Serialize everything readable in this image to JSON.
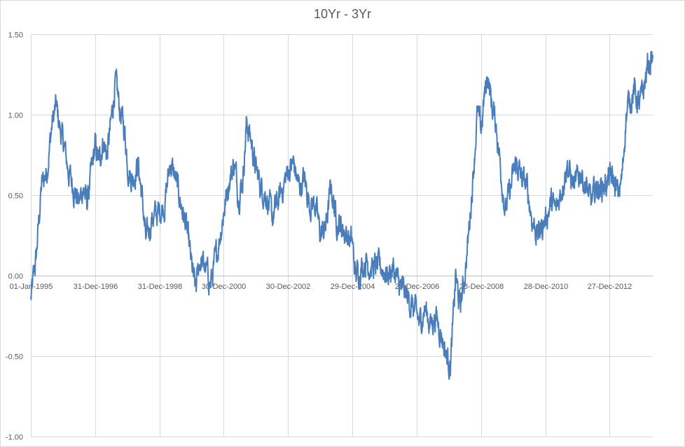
{
  "chart_data": {
    "type": "line",
    "title": "10Yr - 3Yr",
    "xlabel": "",
    "ylabel": "",
    "ylim": [
      -1.0,
      1.5
    ],
    "y_ticks": [
      "1.50",
      "1.00",
      "0.50",
      "0.00",
      "-0.50",
      "-1.00"
    ],
    "y_tick_values": [
      1.5,
      1.0,
      0.5,
      0.0,
      -0.5,
      -1.0
    ],
    "x_range": [
      "1995-01-01",
      "2014-04-30"
    ],
    "x_ticks": [
      "01-Jan-1995",
      "31-Dec-1996",
      "31-Dec-1998",
      "30-Dec-2000",
      "30-Dec-2002",
      "29-Dec-2004",
      "29-Dec-2006",
      "28-Dec-2008",
      "28-Dec-2010",
      "27-Dec-2012"
    ],
    "x_tick_dates": [
      "1995-01-01",
      "1996-12-31",
      "1998-12-31",
      "2000-12-30",
      "2002-12-30",
      "2004-12-29",
      "2006-12-29",
      "2008-12-28",
      "2010-12-28",
      "2012-12-27"
    ],
    "grid": {
      "horizontal": true,
      "vertical": true
    },
    "legend": "none",
    "line_color": "#4a7ebb",
    "series": [
      {
        "values": [
          [
            "1995-01-01",
            -0.15
          ],
          [
            "1995-03-01",
            0.1
          ],
          [
            "1995-05-01",
            0.55
          ],
          [
            "1995-07-01",
            0.65
          ],
          [
            "1995-09-01",
            0.95
          ],
          [
            "1995-10-15",
            1.05
          ],
          [
            "1995-12-01",
            0.9
          ],
          [
            "1996-01-15",
            0.8
          ],
          [
            "1996-03-01",
            0.65
          ],
          [
            "1996-05-01",
            0.55
          ],
          [
            "1996-07-01",
            0.45
          ],
          [
            "1996-08-15",
            0.55
          ],
          [
            "1996-10-01",
            0.45
          ],
          [
            "1996-12-31",
            0.8
          ],
          [
            "1997-02-15",
            0.7
          ],
          [
            "1997-04-01",
            0.85
          ],
          [
            "1997-05-15",
            0.75
          ],
          [
            "1997-07-01",
            0.95
          ],
          [
            "1997-08-15",
            1.2
          ],
          [
            "1997-10-01",
            1.05
          ],
          [
            "1997-12-01",
            0.9
          ],
          [
            "1998-01-15",
            0.65
          ],
          [
            "1998-03-01",
            0.6
          ],
          [
            "1998-05-01",
            0.7
          ],
          [
            "1998-06-15",
            0.5
          ],
          [
            "1998-08-01",
            0.2
          ],
          [
            "1998-10-01",
            0.35
          ],
          [
            "1998-12-31",
            0.4
          ],
          [
            "1999-03-01",
            0.45
          ],
          [
            "1999-05-01",
            0.7
          ],
          [
            "1999-07-01",
            0.6
          ],
          [
            "1999-09-01",
            0.45
          ],
          [
            "1999-11-01",
            0.3
          ],
          [
            "2000-01-01",
            0.05
          ],
          [
            "2000-02-15",
            -0.1
          ],
          [
            "2000-04-01",
            0.1
          ],
          [
            "2000-06-01",
            0.05
          ],
          [
            "2000-08-01",
            -0.05
          ],
          [
            "2000-10-01",
            0.1
          ],
          [
            "2000-12-30",
            0.4
          ],
          [
            "2001-03-01",
            0.6
          ],
          [
            "2001-05-01",
            0.7
          ],
          [
            "2001-06-15",
            0.5
          ],
          [
            "2001-08-01",
            0.6
          ],
          [
            "2001-09-15",
            0.95
          ],
          [
            "2001-11-01",
            0.85
          ],
          [
            "2002-01-01",
            0.65
          ],
          [
            "2002-03-01",
            0.55
          ],
          [
            "2002-05-01",
            0.5
          ],
          [
            "2002-07-01",
            0.35
          ],
          [
            "2002-09-01",
            0.45
          ],
          [
            "2002-12-30",
            0.65
          ],
          [
            "2003-03-01",
            0.7
          ],
          [
            "2003-05-01",
            0.55
          ],
          [
            "2003-07-01",
            0.6
          ],
          [
            "2003-09-01",
            0.45
          ],
          [
            "2003-11-01",
            0.45
          ],
          [
            "2004-01-01",
            0.25
          ],
          [
            "2004-03-01",
            0.3
          ],
          [
            "2004-05-01",
            0.55
          ],
          [
            "2004-07-01",
            0.35
          ],
          [
            "2004-09-01",
            0.3
          ],
          [
            "2004-12-29",
            0.2
          ],
          [
            "2005-02-01",
            0.0
          ],
          [
            "2005-04-01",
            0.05
          ],
          [
            "2005-06-01",
            0.1
          ],
          [
            "2005-08-01",
            0.05
          ],
          [
            "2005-10-01",
            0.05
          ],
          [
            "2005-12-01",
            0.05
          ],
          [
            "2006-02-01",
            0.0
          ],
          [
            "2006-04-01",
            0.05
          ],
          [
            "2006-06-01",
            -0.05
          ],
          [
            "2006-08-01",
            -0.1
          ],
          [
            "2006-10-01",
            -0.15
          ],
          [
            "2006-12-29",
            -0.25
          ],
          [
            "2007-02-01",
            -0.3
          ],
          [
            "2007-04-01",
            -0.2
          ],
          [
            "2007-06-01",
            -0.3
          ],
          [
            "2007-08-01",
            -0.25
          ],
          [
            "2007-10-01",
            -0.35
          ],
          [
            "2007-12-01",
            -0.5
          ],
          [
            "2008-01-15",
            -0.55
          ],
          [
            "2008-02-15",
            -0.3
          ],
          [
            "2008-03-15",
            0.0
          ],
          [
            "2008-05-01",
            -0.2
          ],
          [
            "2008-06-15",
            -0.05
          ],
          [
            "2008-08-01",
            0.2
          ],
          [
            "2008-10-01",
            0.65
          ],
          [
            "2008-11-15",
            1.0
          ],
          [
            "2008-12-28",
            0.9
          ],
          [
            "2009-02-01",
            1.1
          ],
          [
            "2009-03-15",
            1.25
          ],
          [
            "2009-05-01",
            1.05
          ],
          [
            "2009-06-15",
            0.95
          ],
          [
            "2009-08-01",
            0.7
          ],
          [
            "2009-10-01",
            0.4
          ],
          [
            "2009-12-01",
            0.55
          ],
          [
            "2010-02-01",
            0.7
          ],
          [
            "2010-04-01",
            0.6
          ],
          [
            "2010-06-01",
            0.55
          ],
          [
            "2010-08-01",
            0.35
          ],
          [
            "2010-10-01",
            0.25
          ],
          [
            "2010-12-28",
            0.35
          ],
          [
            "2011-03-01",
            0.45
          ],
          [
            "2011-05-01",
            0.4
          ],
          [
            "2011-07-01",
            0.55
          ],
          [
            "2011-09-01",
            0.7
          ],
          [
            "2011-10-15",
            0.6
          ],
          [
            "2011-12-01",
            0.55
          ],
          [
            "2012-02-01",
            0.65
          ],
          [
            "2012-04-01",
            0.55
          ],
          [
            "2012-06-01",
            0.45
          ],
          [
            "2012-08-01",
            0.55
          ],
          [
            "2012-10-01",
            0.55
          ],
          [
            "2012-12-27",
            0.6
          ],
          [
            "2013-02-01",
            0.6
          ],
          [
            "2013-04-01",
            0.5
          ],
          [
            "2013-05-15",
            0.6
          ],
          [
            "2013-07-01",
            1.0
          ],
          [
            "2013-08-15",
            1.1
          ],
          [
            "2013-10-01",
            1.15
          ],
          [
            "2013-12-01",
            1.05
          ],
          [
            "2014-01-15",
            1.15
          ],
          [
            "2014-03-01",
            1.3
          ],
          [
            "2014-04-30",
            1.35
          ]
        ]
      }
    ]
  }
}
